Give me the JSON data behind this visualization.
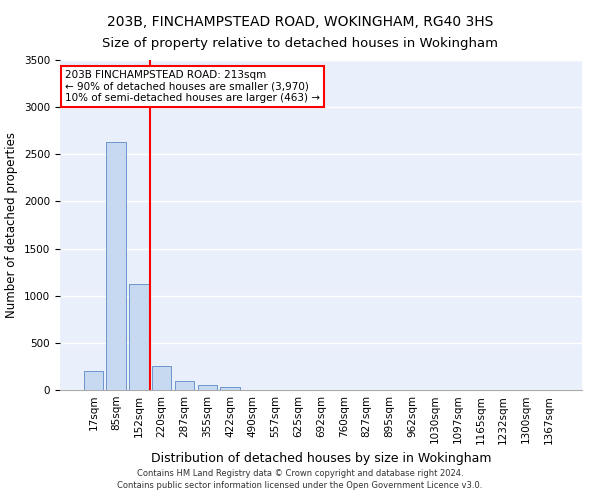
{
  "title1": "203B, FINCHAMPSTEAD ROAD, WOKINGHAM, RG40 3HS",
  "title2": "Size of property relative to detached houses in Wokingham",
  "xlabel": "Distribution of detached houses by size in Wokingham",
  "ylabel": "Number of detached properties",
  "footnote1": "Contains HM Land Registry data © Crown copyright and database right 2024.",
  "footnote2": "Contains public sector information licensed under the Open Government Licence v3.0.",
  "bin_labels": [
    "17sqm",
    "85sqm",
    "152sqm",
    "220sqm",
    "287sqm",
    "355sqm",
    "422sqm",
    "490sqm",
    "557sqm",
    "625sqm",
    "692sqm",
    "760sqm",
    "827sqm",
    "895sqm",
    "962sqm",
    "1030sqm",
    "1097sqm",
    "1165sqm",
    "1232sqm",
    "1300sqm",
    "1367sqm"
  ],
  "bar_values": [
    205,
    2630,
    1120,
    255,
    95,
    50,
    28,
    0,
    0,
    0,
    0,
    0,
    0,
    0,
    0,
    0,
    0,
    0,
    0,
    0,
    0
  ],
  "bar_color": "#c6d9f0",
  "bar_edgecolor": "#5a8ac6",
  "property_line_color": "red",
  "annotation_text": "203B FINCHAMPSTEAD ROAD: 213sqm\n← 90% of detached houses are smaller (3,970)\n10% of semi-detached houses are larger (463) →",
  "annotation_box_color": "white",
  "annotation_box_edgecolor": "red",
  "ylim": [
    0,
    3500
  ],
  "background_color": "#eaf0fb",
  "grid_color": "white",
  "title1_fontsize": 10,
  "title2_fontsize": 9.5,
  "axis_label_fontsize": 8.5,
  "tick_fontsize": 7.5,
  "footnote_fontsize": 6,
  "annotation_fontsize": 7.5
}
